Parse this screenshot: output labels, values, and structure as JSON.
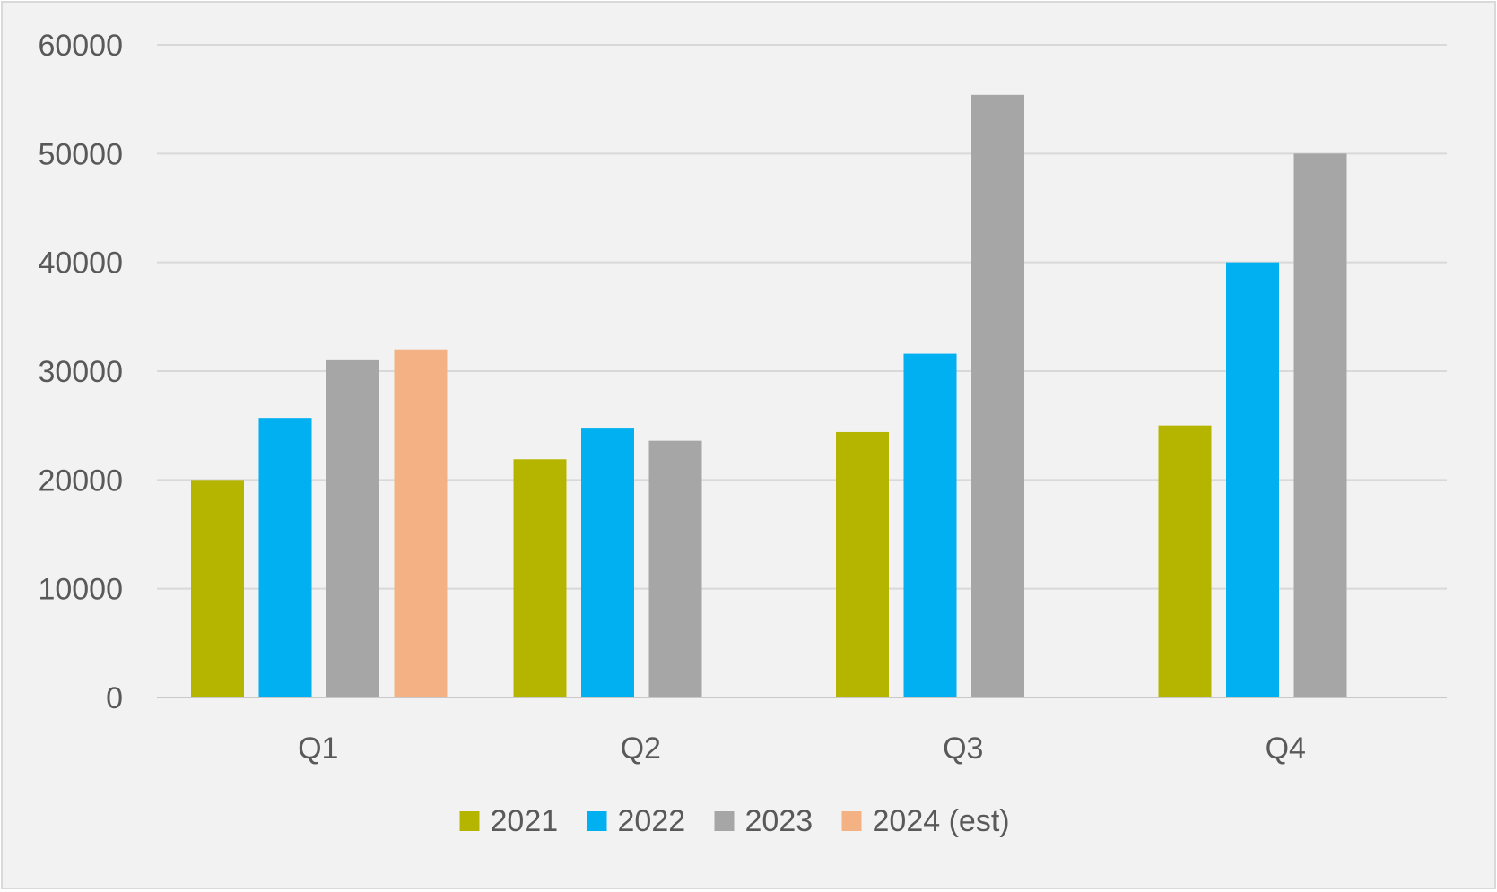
{
  "chart_data": {
    "type": "bar",
    "title": "",
    "xlabel": "",
    "ylabel": "",
    "categories": [
      "Q1",
      "Q2",
      "Q3",
      "Q4"
    ],
    "series": [
      {
        "name": "2021",
        "color": "#b5b500",
        "values": [
          20000,
          21900,
          24400,
          25000
        ]
      },
      {
        "name": "2022",
        "color": "#00b0f0",
        "values": [
          25700,
          24800,
          31600,
          40000
        ]
      },
      {
        "name": "2023",
        "color": "#a6a6a6",
        "values": [
          31000,
          23600,
          55400,
          50000
        ]
      },
      {
        "name": "2024 (est)",
        "color": "#f4b183",
        "values": [
          32000,
          null,
          null,
          null
        ]
      }
    ],
    "yticks": [
      "0",
      "10000",
      "20000",
      "30000",
      "40000",
      "50000",
      "60000"
    ],
    "ylim": [
      0,
      60000
    ],
    "grid": true,
    "legend_position": "bottom"
  }
}
